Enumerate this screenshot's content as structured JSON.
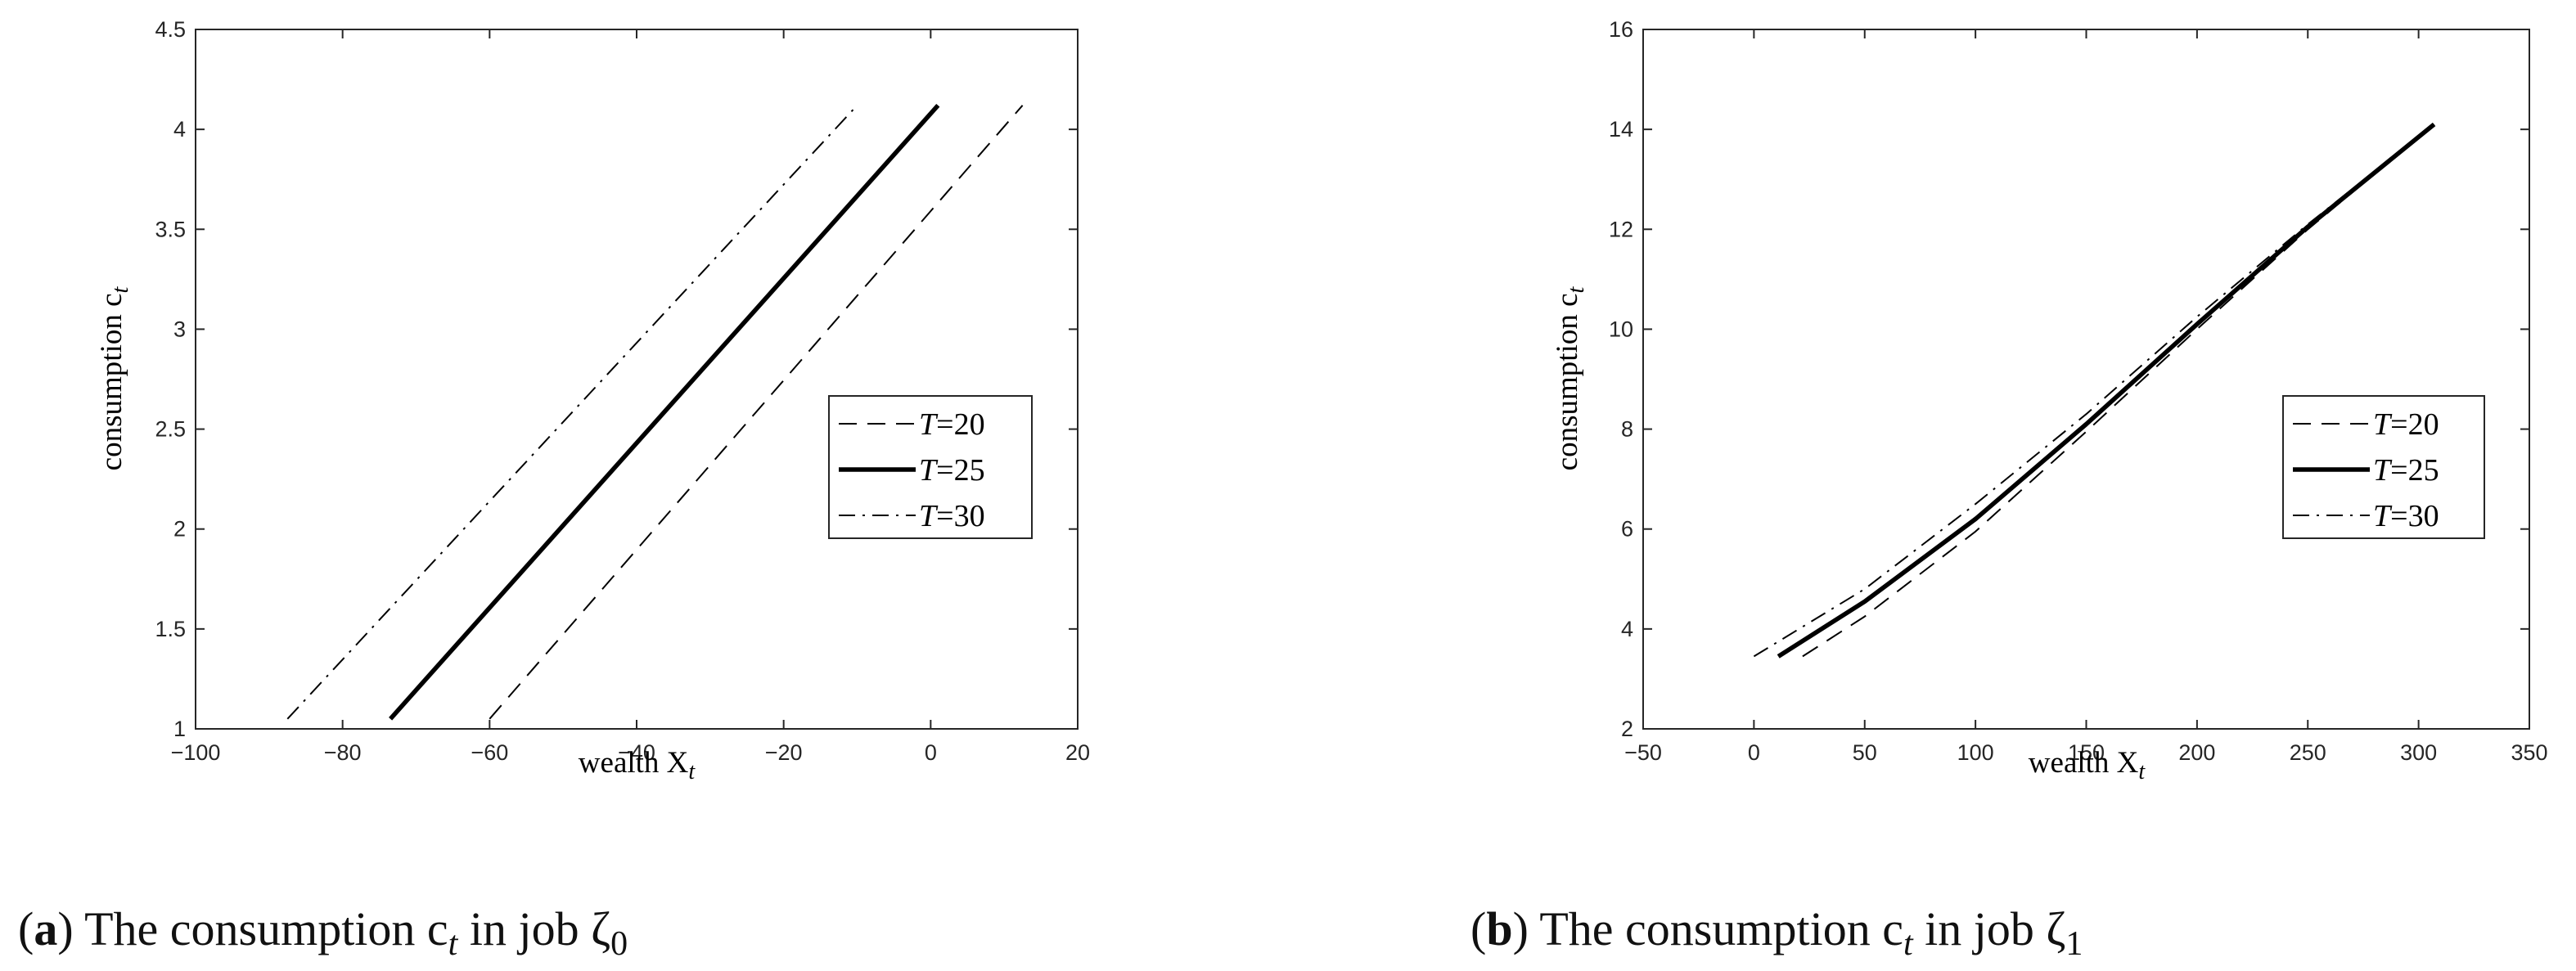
{
  "chart_data": [
    {
      "type": "line",
      "panel_label": "a",
      "caption": ") The consumption c",
      "caption_sub": "t",
      "caption_tail": " in job ζ",
      "caption_tail_sub": "0",
      "xlabel": "wealth X",
      "xlabel_sub": "t",
      "ylabel": "consumption c",
      "ylabel_sub": "t",
      "xlim": [
        -100,
        20
      ],
      "ylim": [
        1,
        4.5
      ],
      "xticks": [
        -100,
        -80,
        -60,
        -40,
        -20,
        0,
        20
      ],
      "xtick_labels": [
        "−100",
        "−80",
        "−60",
        "−40",
        "−20",
        "0",
        "20"
      ],
      "yticks": [
        1,
        1.5,
        2,
        2.5,
        3,
        3.5,
        4,
        4.5
      ],
      "ytick_labels": [
        "1",
        "1.5",
        "2",
        "2.5",
        "3",
        "3.5",
        "4",
        "4.5"
      ],
      "grid": false,
      "legend_position": "right",
      "series": [
        {
          "name": "T=20",
          "style": "dashed",
          "x": [
            -60,
            12.5
          ],
          "y": [
            1.05,
            4.12
          ]
        },
        {
          "name": "T=25",
          "style": "solid",
          "x": [
            -73.5,
            1
          ],
          "y": [
            1.05,
            4.12
          ]
        },
        {
          "name": "T=30",
          "style": "dashdot",
          "x": [
            -87.5,
            -10
          ],
          "y": [
            1.05,
            4.12
          ]
        }
      ]
    },
    {
      "type": "line",
      "panel_label": "b",
      "caption": ") The consumption c",
      "caption_sub": "t",
      "caption_tail": " in job ζ",
      "caption_tail_sub": "1",
      "xlabel": "wealth X",
      "xlabel_sub": "t",
      "ylabel": "consumption c",
      "ylabel_sub": "t",
      "xlim": [
        -50,
        350
      ],
      "ylim": [
        2,
        16
      ],
      "xticks": [
        -50,
        0,
        50,
        100,
        150,
        200,
        250,
        300,
        350
      ],
      "xtick_labels": [
        "−50",
        "0",
        "50",
        "100",
        "150",
        "200",
        "250",
        "300",
        "350"
      ],
      "yticks": [
        2,
        4,
        6,
        8,
        10,
        12,
        14,
        16
      ],
      "ytick_labels": [
        "2",
        "4",
        "6",
        "8",
        "10",
        "12",
        "14",
        "16"
      ],
      "grid": false,
      "legend_position": "right",
      "series": [
        {
          "name": "T=20",
          "style": "dashed",
          "x": [
            22,
            50,
            100,
            150,
            200,
            250,
            307
          ],
          "y": [
            3.45,
            4.25,
            5.95,
            7.95,
            10.0,
            12.0,
            14.1
          ]
        },
        {
          "name": "T=25",
          "style": "solid",
          "x": [
            11,
            50,
            100,
            150,
            200,
            250,
            307
          ],
          "y": [
            3.45,
            4.55,
            6.2,
            8.1,
            10.1,
            12.05,
            14.1
          ]
        },
        {
          "name": "T=30",
          "style": "dashdot",
          "x": [
            0,
            50,
            100,
            150,
            200,
            250,
            307
          ],
          "y": [
            3.45,
            4.8,
            6.5,
            8.3,
            10.25,
            12.1,
            14.1
          ]
        }
      ]
    }
  ]
}
